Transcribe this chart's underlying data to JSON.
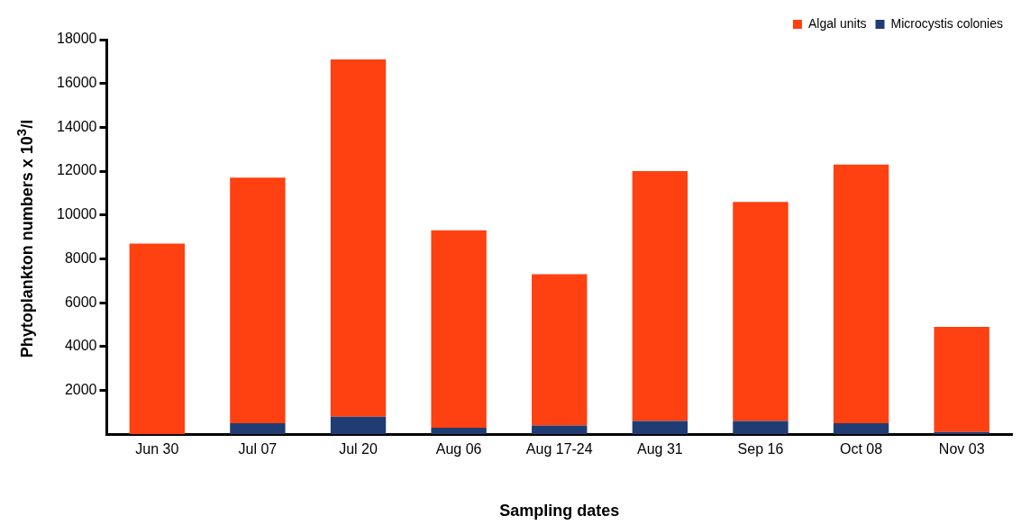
{
  "chart_data": {
    "type": "bar",
    "stacked": true,
    "xlabel": "Sampling dates",
    "ylabel": "Phytoplankton numbers x 10$^{3}$/l",
    "categories": [
      "Jun 30",
      "Jul 07",
      "Jul 20",
      "Aug 06",
      "Aug 17-24",
      "Aug 31",
      "Sep 16",
      "Oct 08",
      "Nov 03"
    ],
    "series": [
      {
        "name": "Microcystis colonies",
        "color": "#1f3d73",
        "values": [
          0,
          500,
          800,
          300,
          400,
          600,
          600,
          500,
          100
        ]
      },
      {
        "name": "Algal units",
        "color": "#ff4010",
        "values": [
          8700,
          11200,
          16300,
          9000,
          6900,
          11400,
          10000,
          11800,
          4800
        ]
      }
    ],
    "ylim": [
      0,
      18000
    ],
    "yticks": [
      2000,
      4000,
      6000,
      8000,
      10000,
      12000,
      14000,
      16000,
      18000
    ],
    "grid": false,
    "legend": "top right"
  }
}
